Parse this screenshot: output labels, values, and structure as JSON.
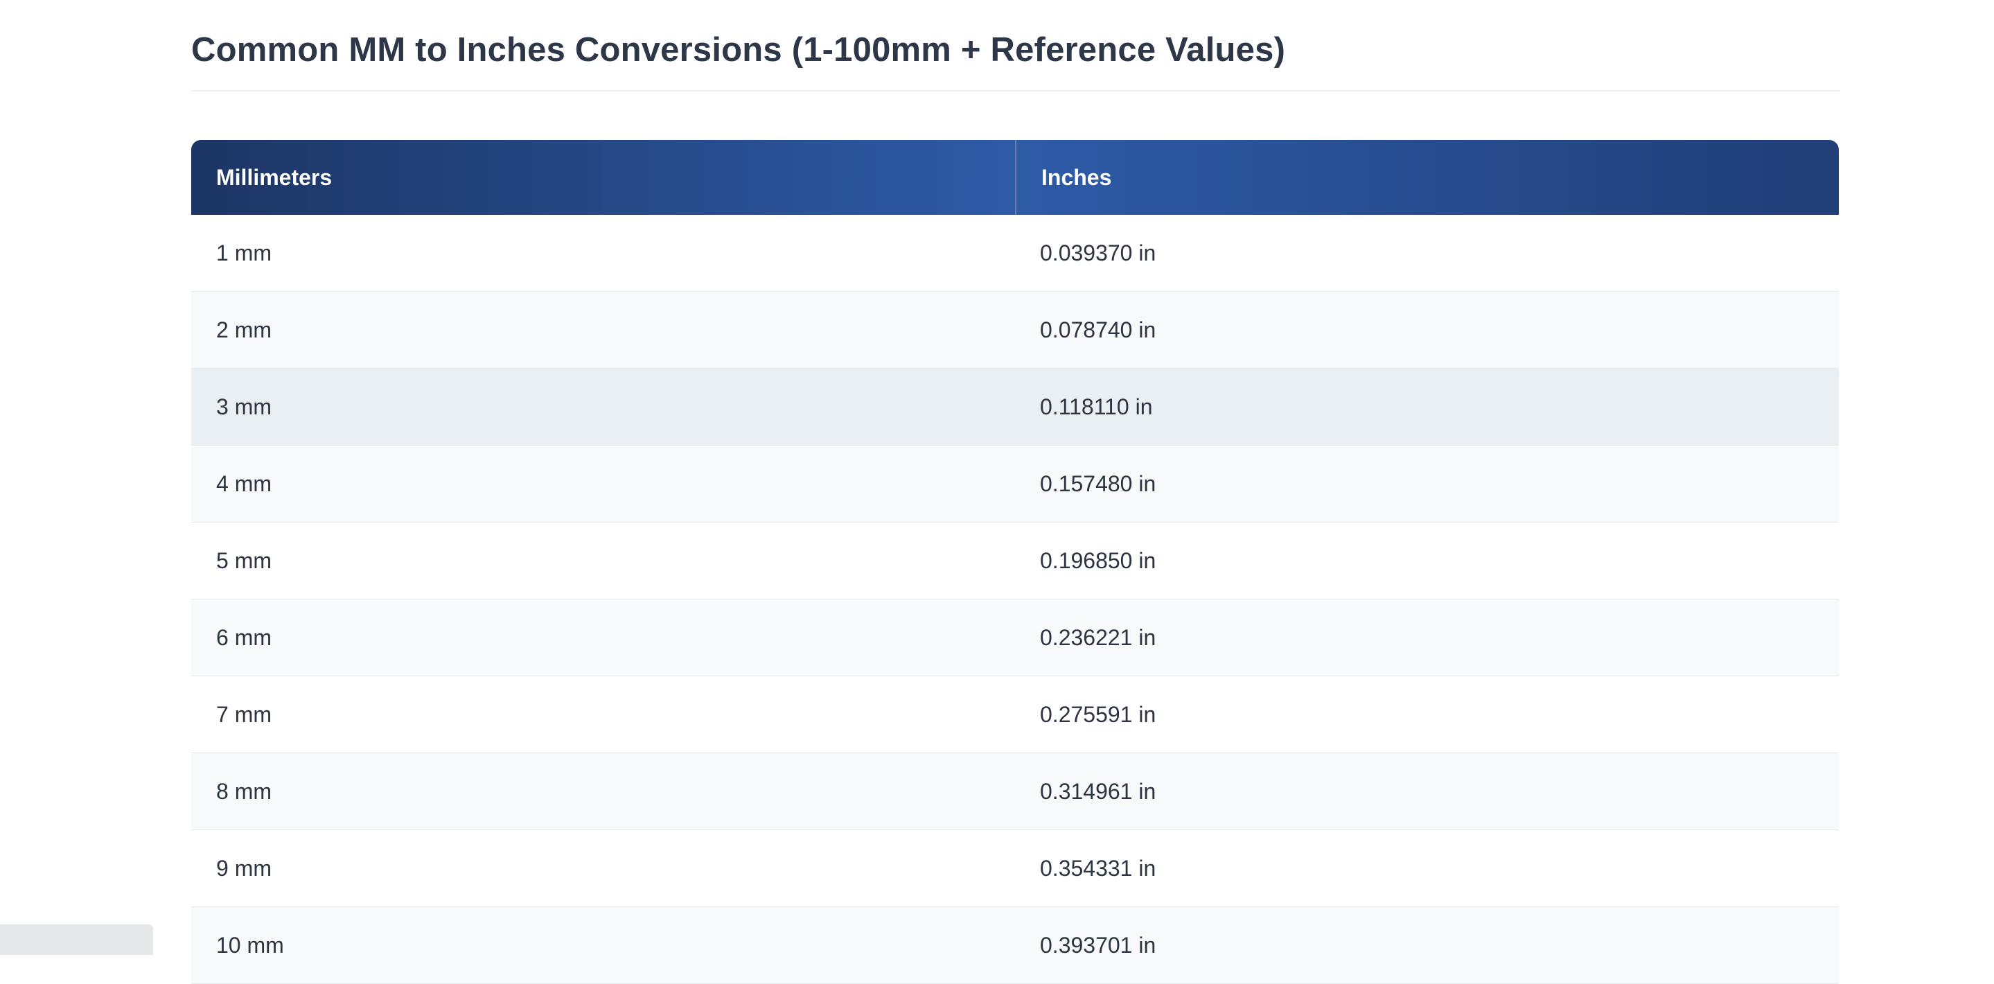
{
  "page": {
    "title": "Common MM to Inches Conversions (1-100mm + Reference Values)"
  },
  "table": {
    "columns": [
      "Millimeters",
      "Inches"
    ],
    "highlighted_row_index": 2,
    "rows": [
      {
        "mm": "1 mm",
        "in": "0.039370 in"
      },
      {
        "mm": "2 mm",
        "in": "0.078740 in"
      },
      {
        "mm": "3 mm",
        "in": "0.118110 in"
      },
      {
        "mm": "4 mm",
        "in": "0.157480 in"
      },
      {
        "mm": "5 mm",
        "in": "0.196850 in"
      },
      {
        "mm": "6 mm",
        "in": "0.236221 in"
      },
      {
        "mm": "7 mm",
        "in": "0.275591 in"
      },
      {
        "mm": "8 mm",
        "in": "0.314961 in"
      },
      {
        "mm": "9 mm",
        "in": "0.354331 in"
      },
      {
        "mm": "10 mm",
        "in": "0.393701 in"
      }
    ]
  },
  "colors": {
    "header_gradient_start": "#1c3564",
    "header_gradient_mid": "#2e5ba7",
    "header_gradient_end": "#203e77",
    "row_alt_background": "#f8f9fa",
    "row_highlight_background": "#eaeff3",
    "heading_text": "#2d3748",
    "cell_text": "#2b3440",
    "row_border": "#e6e9ec",
    "divider": "#edeff2"
  }
}
